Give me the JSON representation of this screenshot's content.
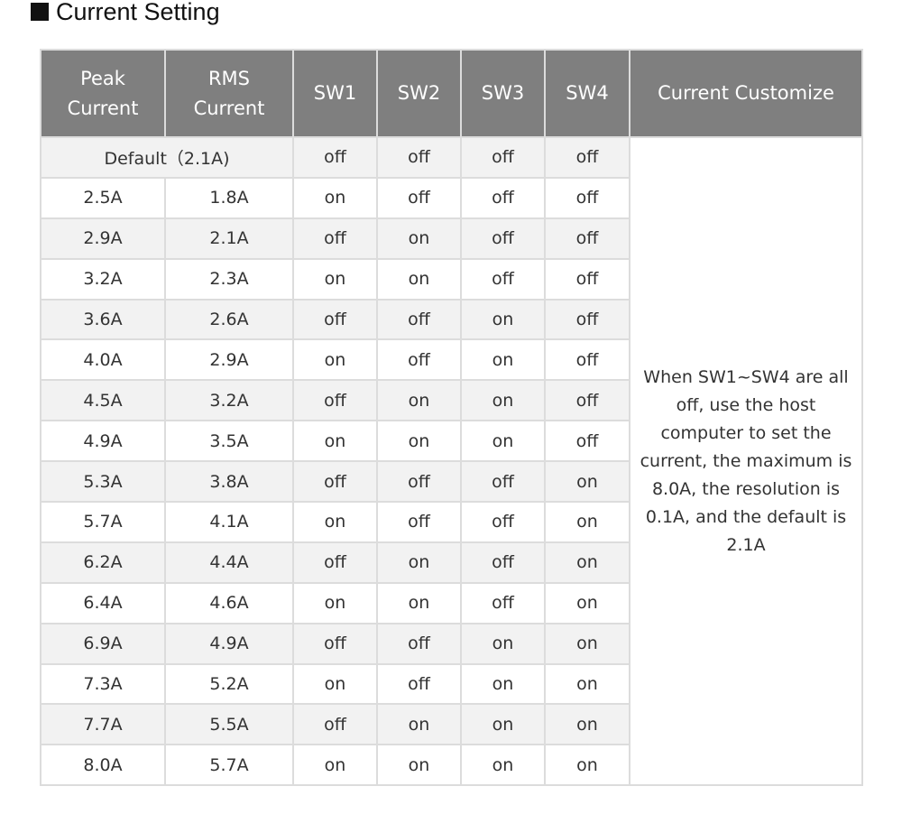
{
  "heading": {
    "title": "Current Setting"
  },
  "table": {
    "headers": {
      "peak": [
        "Peak",
        "Current"
      ],
      "rms": [
        "RMS",
        "Current"
      ],
      "sw1": "SW1",
      "sw2": "SW2",
      "sw3": "SW3",
      "sw4": "SW4",
      "custom": "Current Customize"
    },
    "default_row": {
      "label": "Default（2.1A)",
      "sw1": "off",
      "sw2": "off",
      "sw3": "off",
      "sw4": "off"
    },
    "note": "When SW1~SW4 are all off, use the host computer to set the current, the maximum is 8.0A, the resolution is 0.1A, and the default is 2.1A",
    "rows": [
      {
        "peak": "2.5A",
        "rms": "1.8A",
        "sw1": "on",
        "sw2": "off",
        "sw3": "off",
        "sw4": "off"
      },
      {
        "peak": "2.9A",
        "rms": "2.1A",
        "sw1": "off",
        "sw2": "on",
        "sw3": "off",
        "sw4": "off"
      },
      {
        "peak": "3.2A",
        "rms": "2.3A",
        "sw1": "on",
        "sw2": "on",
        "sw3": "off",
        "sw4": "off"
      },
      {
        "peak": "3.6A",
        "rms": "2.6A",
        "sw1": "off",
        "sw2": "off",
        "sw3": "on",
        "sw4": "off"
      },
      {
        "peak": "4.0A",
        "rms": "2.9A",
        "sw1": "on",
        "sw2": "off",
        "sw3": "on",
        "sw4": "off"
      },
      {
        "peak": "4.5A",
        "rms": "3.2A",
        "sw1": "off",
        "sw2": "on",
        "sw3": "on",
        "sw4": "off"
      },
      {
        "peak": "4.9A",
        "rms": "3.5A",
        "sw1": "on",
        "sw2": "on",
        "sw3": "on",
        "sw4": "off"
      },
      {
        "peak": "5.3A",
        "rms": "3.8A",
        "sw1": "off",
        "sw2": "off",
        "sw3": "off",
        "sw4": "on"
      },
      {
        "peak": "5.7A",
        "rms": "4.1A",
        "sw1": "on",
        "sw2": "off",
        "sw3": "off",
        "sw4": "on"
      },
      {
        "peak": "6.2A",
        "rms": "4.4A",
        "sw1": "off",
        "sw2": "on",
        "sw3": "off",
        "sw4": "on"
      },
      {
        "peak": "6.4A",
        "rms": "4.6A",
        "sw1": "on",
        "sw2": "on",
        "sw3": "off",
        "sw4": "on"
      },
      {
        "peak": "6.9A",
        "rms": "4.9A",
        "sw1": "off",
        "sw2": "off",
        "sw3": "on",
        "sw4": "on"
      },
      {
        "peak": "7.3A",
        "rms": "5.2A",
        "sw1": "on",
        "sw2": "off",
        "sw3": "on",
        "sw4": "on"
      },
      {
        "peak": "7.7A",
        "rms": "5.5A",
        "sw1": "off",
        "sw2": "on",
        "sw3": "on",
        "sw4": "on"
      },
      {
        "peak": "8.0A",
        "rms": "5.7A",
        "sw1": "on",
        "sw2": "on",
        "sw3": "on",
        "sw4": "on"
      }
    ]
  },
  "colors": {
    "header_bg": "#7f7f7f",
    "header_text": "#ffffff",
    "stripe_bg": "#f2f2f2",
    "border": "#dcdcdc"
  }
}
